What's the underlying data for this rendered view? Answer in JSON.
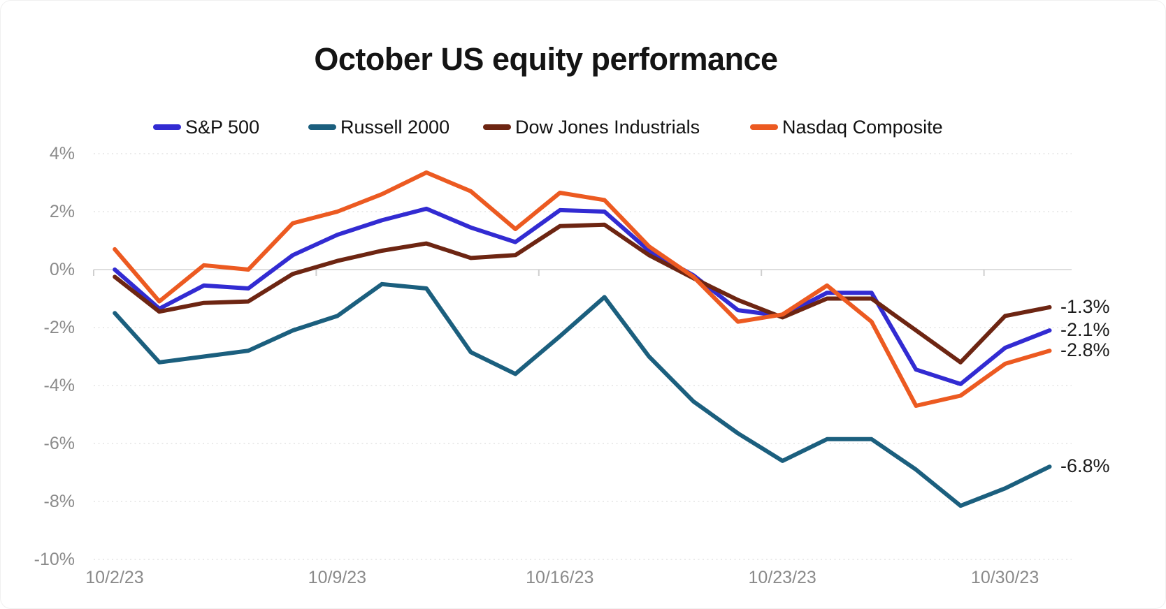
{
  "title": "October US equity performance",
  "chart_data": {
    "type": "line",
    "title": "October US equity performance",
    "x": [
      "10/2/23",
      "10/3/23",
      "10/4/23",
      "10/5/23",
      "10/6/23",
      "10/9/23",
      "10/10/23",
      "10/11/23",
      "10/12/23",
      "10/13/23",
      "10/16/23",
      "10/17/23",
      "10/18/23",
      "10/19/23",
      "10/20/23",
      "10/23/23",
      "10/24/23",
      "10/25/23",
      "10/26/23",
      "10/27/23",
      "10/30/23",
      "10/31/23"
    ],
    "x_tick_labels": [
      "10/2/23",
      "10/9/23",
      "10/16/23",
      "10/23/23",
      "10/30/23"
    ],
    "x_tick_indices": [
      0,
      5,
      10,
      15,
      20
    ],
    "y_ticks": [
      4,
      2,
      0,
      -2,
      -4,
      -6,
      -8,
      -10
    ],
    "y_tick_labels": [
      "4%",
      "2%",
      "0%",
      "-2%",
      "-4%",
      "-6%",
      "-8%",
      "-10%"
    ],
    "ylim": [
      -10,
      4
    ],
    "unit": "%",
    "grid": "horizontal dashed, solid zero line",
    "legend_position": "top",
    "series": [
      {
        "name": "S&P 500",
        "color": "#322BD2",
        "end_label": "-2.1%",
        "values": [
          0.0,
          -1.35,
          -0.55,
          -0.65,
          0.5,
          1.2,
          1.7,
          2.1,
          1.45,
          0.95,
          2.05,
          2.0,
          0.65,
          -0.2,
          -1.4,
          -1.6,
          -0.8,
          -0.8,
          -3.45,
          -3.95,
          -2.7,
          -2.1
        ]
      },
      {
        "name": "Russell 2000",
        "color": "#1B5F7E",
        "end_label": "-6.8%",
        "values": [
          -1.5,
          -3.2,
          -3.0,
          -2.8,
          -2.1,
          -1.6,
          -0.5,
          -0.65,
          -2.85,
          -3.6,
          -2.3,
          -0.95,
          -3.0,
          -4.55,
          -5.65,
          -6.6,
          -5.85,
          -5.85,
          -6.9,
          -8.15,
          -7.55,
          -6.8
        ]
      },
      {
        "name": "Dow Jones Industrials",
        "color": "#6D2512",
        "end_label": "-1.3%",
        "values": [
          -0.25,
          -1.45,
          -1.15,
          -1.1,
          -0.15,
          0.3,
          0.65,
          0.9,
          0.4,
          0.5,
          1.5,
          1.55,
          0.5,
          -0.3,
          -1.05,
          -1.65,
          -1.0,
          -1.0,
          -2.1,
          -3.2,
          -1.6,
          -1.3
        ]
      },
      {
        "name": "Nasdaq Composite",
        "color": "#EC5A21",
        "end_label": "-2.8%",
        "values": [
          0.7,
          -1.1,
          0.15,
          0.0,
          1.6,
          2.0,
          2.6,
          3.35,
          2.7,
          1.4,
          2.65,
          2.4,
          0.8,
          -0.25,
          -1.8,
          -1.55,
          -0.55,
          -1.8,
          -4.7,
          -4.35,
          -3.25,
          -2.8
        ]
      }
    ],
    "colors": {
      "zero_line": "#d4d4d4",
      "gridline": "#e4e4e4",
      "tick": "#cfcfcf",
      "axis_text": "#8a8a8a",
      "title_text": "#141414",
      "end_label_text": "#1b1b1b"
    }
  }
}
